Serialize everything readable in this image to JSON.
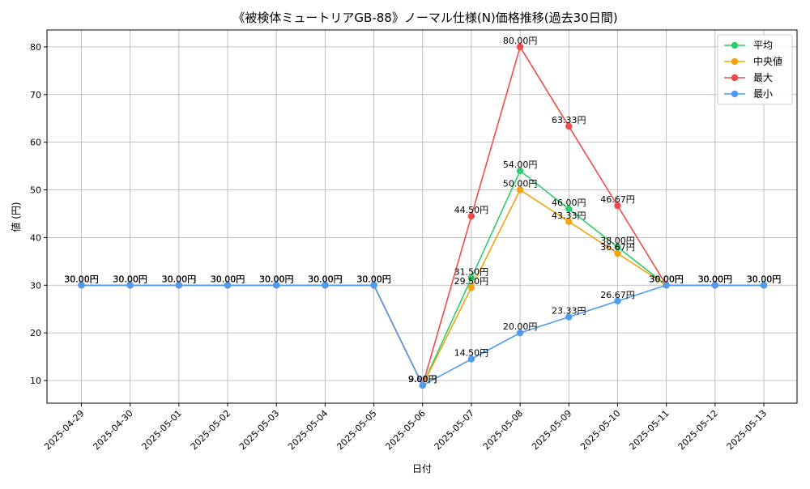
{
  "chart_data": {
    "type": "line",
    "title": "《被検体ミュートリアGB-88》ノーマル仕様(N)価格推移(過去30日間)",
    "xlabel": "日付",
    "ylabel": "値 (円)",
    "ylim": [
      5.25,
      83.55
    ],
    "yticks": [
      10,
      20,
      30,
      40,
      50,
      60,
      70,
      80
    ],
    "grid": true,
    "legend_position": "top-right",
    "value_suffix": "円",
    "categories": [
      "2025-04-29",
      "2025-04-30",
      "2025-05-01",
      "2025-05-02",
      "2025-05-03",
      "2025-05-04",
      "2025-05-05",
      "2025-05-06",
      "2025-05-07",
      "2025-05-08",
      "2025-05-09",
      "2025-05-10",
      "2025-05-11",
      "2025-05-12",
      "2025-05-13"
    ],
    "series": [
      {
        "name": "平均",
        "color": "#2ecc71",
        "values": [
          30,
          30,
          30,
          30,
          30,
          30,
          30,
          9,
          31.5,
          54,
          46,
          38,
          30,
          30,
          30
        ]
      },
      {
        "name": "中央値",
        "color": "#f5a30a",
        "values": [
          30,
          30,
          30,
          30,
          30,
          30,
          30,
          9,
          29.5,
          50,
          43.33,
          36.67,
          30,
          30,
          30
        ]
      },
      {
        "name": "最大",
        "color": "#f04b4b",
        "values": [
          30,
          30,
          30,
          30,
          30,
          30,
          30,
          9,
          44.5,
          80,
          63.33,
          46.67,
          30,
          30,
          30
        ]
      },
      {
        "name": "最小",
        "color": "#4f9bf2",
        "values": [
          30,
          30,
          30,
          30,
          30,
          30,
          30,
          9,
          14.5,
          20,
          23.33,
          26.67,
          30,
          30,
          30
        ]
      }
    ]
  }
}
